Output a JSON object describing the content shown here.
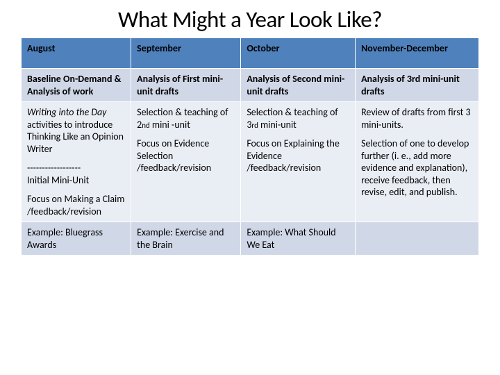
{
  "title": "What Might a Year Look Like?",
  "table": {
    "headers": [
      "August",
      "September",
      "October",
      "November-December"
    ],
    "row1": {
      "c0": "Baseline On-Demand & Analysis of work",
      "c1": "Analysis of First mini-unit drafts",
      "c2": "Analysis of Second mini-unit drafts",
      "c3": "Analysis of 3rd mini-unit drafts"
    },
    "row2": {
      "c0_a_italic": "Writing into the Day",
      "c0_a_rest": " activities to introduce Thinking Like an Opinion Writer",
      "c0_divider": "------------------",
      "c0_b": "Initial Mini-Unit",
      "c0_c": "Focus on Making a Claim /feedback/revision",
      "c1_a_pre": "Selection & teaching of 2",
      "c1_a_sup": "nd",
      "c1_a_post": " mini -unit",
      "c1_b": "Focus on Evidence Selection /feedback/revision",
      "c2_a_pre": "Selection & teaching of 3",
      "c2_a_sup": "rd",
      "c2_a_post": " mini-unit",
      "c2_b": "Focus on Explaining the Evidence /feedback/revision",
      "c3_a": "Review of drafts from first 3 mini-units.",
      "c3_b": "Selection of one to develop further (i. e., add more evidence and explanation), receive feedback, then revise, edit, and publish."
    },
    "row3": {
      "c0": "Example: Bluegrass Awards",
      "c1": "Example: Exercise and the Brain",
      "c2": "Example: What Should We Eat",
      "c3": ""
    },
    "colors": {
      "header_bg": "#4f81bd",
      "band_dark": "#d0d8e8",
      "band_light": "#e9edf4",
      "border": "#ffffff"
    }
  }
}
